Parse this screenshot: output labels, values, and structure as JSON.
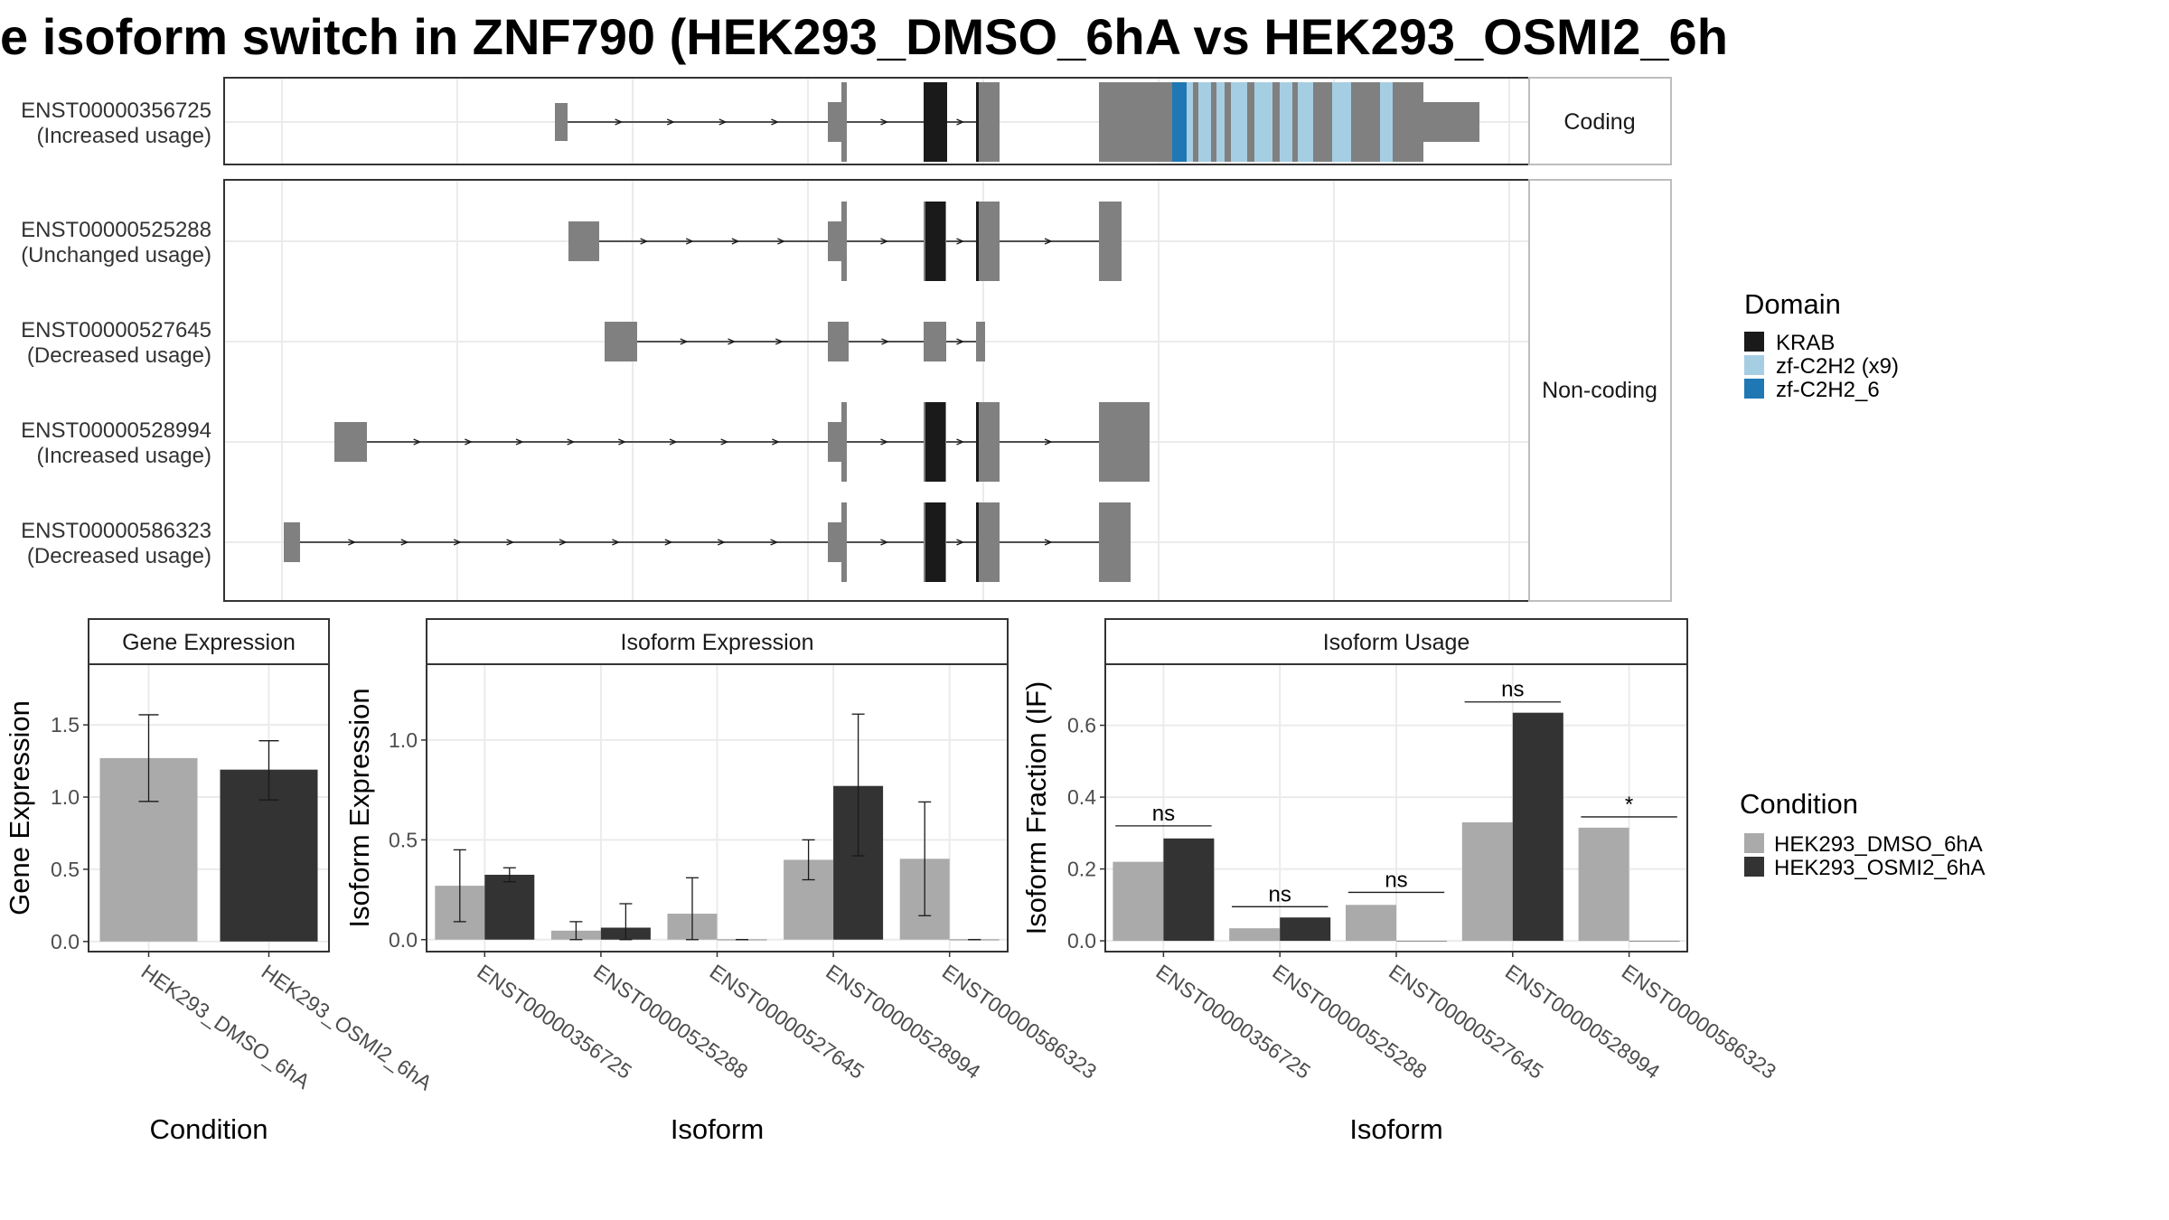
{
  "title": "e isoform switch in ZNF790 (HEK293_DMSO_6hA vs HEK293_OSMI2_6h",
  "colors": {
    "exon": "#808080",
    "krab": "#1a1a1a",
    "zf_c2h2_x9": "#a6cee3",
    "zf_c2h2_6": "#1f78b4",
    "dmso": "#aaaaaa",
    "osmi2": "#333333",
    "grid": "#ebebeb",
    "panel_border": "#333333",
    "strip_border": "#bdbdbd"
  },
  "structure": {
    "facets": [
      {
        "label": "Coding",
        "transcripts": [
          "ENST00000356725"
        ]
      },
      {
        "label": "Non-coding",
        "transcripts": [
          "ENST00000525288",
          "ENST00000527645",
          "ENST00000528994",
          "ENST00000586323"
        ]
      }
    ],
    "transcripts": [
      {
        "id": "ENST00000356725",
        "usage": "(Increased usage)",
        "coding": true
      },
      {
        "id": "ENST00000525288",
        "usage": "(Unchanged usage)",
        "coding": false
      },
      {
        "id": "ENST00000527645",
        "usage": "(Decreased usage)",
        "coding": false
      },
      {
        "id": "ENST00000528994",
        "usage": "(Increased usage)",
        "coding": false
      },
      {
        "id": "ENST00000586323",
        "usage": "(Decreased usage)",
        "coding": false
      }
    ]
  },
  "legend_domain": {
    "title": "Domain",
    "items": [
      {
        "label": "KRAB",
        "color": "#1a1a1a"
      },
      {
        "label": "zf-C2H2 (x9)",
        "color": "#a6cee3"
      },
      {
        "label": "zf-C2H2_6",
        "color": "#1f78b4"
      }
    ]
  },
  "legend_condition": {
    "title": "Condition",
    "items": [
      {
        "label": "HEK293_DMSO_6hA",
        "color": "#aaaaaa"
      },
      {
        "label": "HEK293_OSMI2_6hA",
        "color": "#333333"
      }
    ]
  },
  "chart_data": [
    {
      "type": "bar",
      "title": "Gene Expression",
      "xlabel": "Condition",
      "ylabel": "Gene Expression",
      "categories": [
        "HEK293_DMSO_6hA",
        "HEK293_OSMI2_6hA"
      ],
      "values": [
        1.27,
        1.19
      ],
      "error_low": [
        0.97,
        0.98
      ],
      "error_high": [
        1.57,
        1.39
      ],
      "ylim": [
        -0.07,
        1.92
      ],
      "yticks": [
        "0.0",
        "0.5",
        "1.0",
        "1.5"
      ]
    },
    {
      "type": "bar",
      "title": "Isoform Expression",
      "xlabel": "Isoform",
      "ylabel": "Isoform Expression",
      "categories": [
        "ENST00000356725",
        "ENST00000525288",
        "ENST00000527645",
        "ENST00000528994",
        "ENST00000586323"
      ],
      "series": [
        {
          "name": "HEK293_DMSO_6hA",
          "values": [
            0.27,
            0.045,
            0.13,
            0.4,
            0.405
          ],
          "error_low": [
            0.09,
            0.0,
            0.0,
            0.3,
            0.12
          ],
          "error_high": [
            0.45,
            0.09,
            0.31,
            0.5,
            0.69
          ]
        },
        {
          "name": "HEK293_OSMI2_6hA",
          "values": [
            0.325,
            0.06,
            0.0,
            0.77,
            0.0
          ],
          "error_low": [
            0.29,
            0.0,
            0.0,
            0.42,
            0.0
          ],
          "error_high": [
            0.36,
            0.18,
            0.0,
            1.13,
            0.0
          ]
        }
      ],
      "ylim": [
        -0.06,
        1.38
      ],
      "yticks": [
        "0.0",
        "0.5",
        "1.0"
      ]
    },
    {
      "type": "bar",
      "title": "Isoform Usage",
      "xlabel": "Isoform",
      "ylabel": "Isoform Fraction (IF)",
      "categories": [
        "ENST00000356725",
        "ENST00000525288",
        "ENST00000527645",
        "ENST00000528994",
        "ENST00000586323"
      ],
      "series": [
        {
          "name": "HEK293_DMSO_6hA",
          "values": [
            0.22,
            0.035,
            0.1,
            0.33,
            0.315
          ]
        },
        {
          "name": "HEK293_OSMI2_6hA",
          "values": [
            0.285,
            0.065,
            0.0,
            0.635,
            0.0
          ]
        }
      ],
      "significance": [
        {
          "label": "ns",
          "y": 0.32
        },
        {
          "label": "ns",
          "y": 0.095
        },
        {
          "label": "ns",
          "y": 0.135
        },
        {
          "label": "ns",
          "y": 0.665
        },
        {
          "label": "*",
          "y": 0.345
        }
      ],
      "ylim": [
        -0.03,
        0.77
      ],
      "yticks": [
        "0.0",
        "0.2",
        "0.4",
        "0.6"
      ]
    }
  ]
}
